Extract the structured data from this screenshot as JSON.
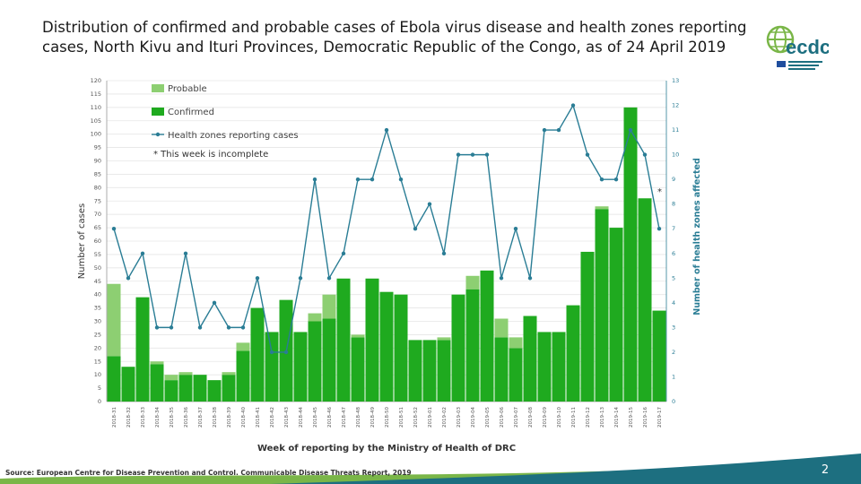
{
  "slide": {
    "title_line1": "Distribution of confirmed and probable cases of Ebola virus disease and health zones reporting",
    "title_line2": "cases, North Kivu and Ituri Provinces, Democratic Republic of the Congo, as of 24 April 2019",
    "source": "Source: European Centre for Disease Prevention and Control. Communicable Disease Threats Report, 2019",
    "page_number": "2",
    "logo_text": "ecdc"
  },
  "colors": {
    "confirmed": "#1faa1f",
    "probable": "#8dcf72",
    "health_zones_line": "#2a7d95",
    "accent_green": "#7ab648",
    "accent_teal": "#1d6f80"
  },
  "chart_data": {
    "type": "bar",
    "stacked": true,
    "xlabel": "Week of reporting by the Ministry of Health of DRC",
    "ylabel": "Number of cases",
    "y2label": "Number of health zones affected",
    "ylim": [
      0,
      120
    ],
    "y2lim": [
      0,
      13
    ],
    "legend_position": "top-left",
    "annotation": "* This week is incomplete",
    "incomplete_marker": "*",
    "categories": [
      "2018-31",
      "2018-32",
      "2018-33",
      "2018-34",
      "2018-35",
      "2018-36",
      "2018-37",
      "2018-38",
      "2018-39",
      "2018-40",
      "2018-41",
      "2018-42",
      "2018-43",
      "2018-44",
      "2018-45",
      "2018-46",
      "2018-47",
      "2018-48",
      "2018-49",
      "2018-50",
      "2018-51",
      "2018-52",
      "2019-01",
      "2019-02",
      "2019-03",
      "2019-04",
      "2019-05",
      "2019-06",
      "2019-07",
      "2019-08",
      "2019-09",
      "2019-10",
      "2019-11",
      "2019-12",
      "2019-13",
      "2019-14",
      "2019-15",
      "2019-16",
      "2019-17"
    ],
    "series": [
      {
        "name": "Confirmed",
        "type": "bar",
        "values": [
          17,
          13,
          39,
          14,
          8,
          10,
          10,
          8,
          10,
          19,
          35,
          26,
          38,
          26,
          30,
          31,
          46,
          24,
          46,
          41,
          40,
          23,
          23,
          23,
          40,
          42,
          49,
          24,
          20,
          32,
          26,
          26,
          36,
          56,
          72,
          65,
          110,
          76,
          34
        ]
      },
      {
        "name": "Probable",
        "type": "bar",
        "values": [
          27,
          0,
          0,
          1,
          2,
          1,
          0,
          0,
          1,
          3,
          0,
          0,
          0,
          0,
          3,
          9,
          0,
          1,
          0,
          0,
          0,
          0,
          0,
          1,
          0,
          5,
          0,
          7,
          4,
          0,
          0,
          0,
          0,
          0,
          1,
          0,
          0,
          0,
          0
        ]
      },
      {
        "name": "Health zones reporting cases",
        "type": "line",
        "axis": "right",
        "values": [
          7,
          5,
          6,
          3,
          3,
          6,
          3,
          4,
          3,
          3,
          5,
          2,
          2,
          5,
          9,
          5,
          6,
          9,
          9,
          11,
          9,
          7,
          8,
          6,
          10,
          10,
          10,
          5,
          7,
          5,
          11,
          11,
          12,
          10,
          9,
          9,
          11,
          10,
          7
        ]
      }
    ]
  }
}
